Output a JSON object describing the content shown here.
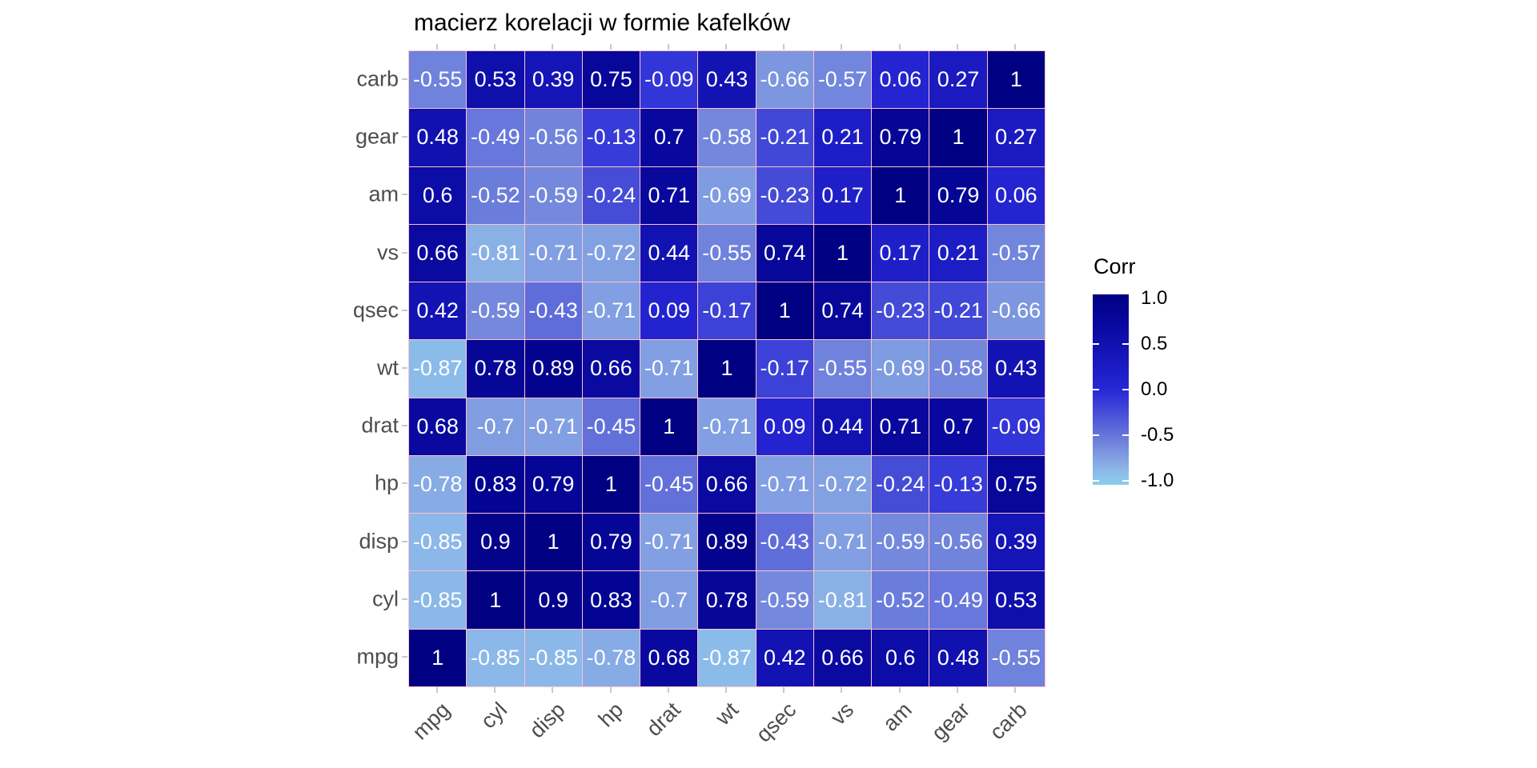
{
  "title": "macierz korelacji w formie kafelków",
  "legend": {
    "title": "Corr",
    "tick_labels": [
      "1.0",
      "0.5",
      "0.0",
      "-0.5",
      "-1.0"
    ],
    "tick_values": [
      1.0,
      0.5,
      0.0,
      -0.5,
      -1.0
    ],
    "dash_values": [
      0.5,
      0.0,
      -0.5,
      -1.0
    ]
  },
  "colors": {
    "tile_border": "#FFC2CE",
    "tile_text": "#FFFFFF",
    "axis_text": "#4D4D4D",
    "axis_tick": "#C9C9C9",
    "title_text": "#000000"
  },
  "chart_data": {
    "type": "heatmap",
    "title": "macierz korelacji w formie kafelków",
    "legend_title": "Corr",
    "legend_position": "right",
    "value_range": [
      -1,
      1
    ],
    "x_categories": [
      "mpg",
      "cyl",
      "disp",
      "hp",
      "drat",
      "wt",
      "qsec",
      "vs",
      "am",
      "gear",
      "carb"
    ],
    "y_categories_top_to_bottom": [
      "carb",
      "gear",
      "am",
      "vs",
      "qsec",
      "wt",
      "drat",
      "hp",
      "disp",
      "cyl",
      "mpg"
    ],
    "matrix_rows_top_to_bottom": [
      [
        -0.55,
        0.53,
        0.39,
        0.75,
        -0.09,
        0.43,
        -0.66,
        -0.57,
        0.06,
        0.27,
        1
      ],
      [
        0.48,
        -0.49,
        -0.56,
        -0.13,
        0.7,
        -0.58,
        -0.21,
        0.21,
        0.79,
        1,
        0.27
      ],
      [
        0.6,
        -0.52,
        -0.59,
        -0.24,
        0.71,
        -0.69,
        -0.23,
        0.17,
        1,
        0.79,
        0.06
      ],
      [
        0.66,
        -0.81,
        -0.71,
        -0.72,
        0.44,
        -0.55,
        0.74,
        1,
        0.17,
        0.21,
        -0.57
      ],
      [
        0.42,
        -0.59,
        -0.43,
        -0.71,
        0.09,
        -0.17,
        1,
        0.74,
        -0.23,
        -0.21,
        -0.66
      ],
      [
        -0.87,
        0.78,
        0.89,
        0.66,
        -0.71,
        1,
        -0.17,
        -0.55,
        -0.69,
        -0.58,
        0.43
      ],
      [
        0.68,
        -0.7,
        -0.71,
        -0.45,
        1,
        -0.71,
        0.09,
        0.44,
        0.71,
        0.7,
        -0.09
      ],
      [
        -0.78,
        0.83,
        0.79,
        1,
        -0.45,
        0.66,
        -0.71,
        -0.72,
        -0.24,
        -0.13,
        0.75
      ],
      [
        -0.85,
        0.9,
        1,
        0.79,
        -0.71,
        0.89,
        -0.43,
        -0.71,
        -0.59,
        -0.56,
        0.39
      ],
      [
        -0.85,
        1,
        0.9,
        0.83,
        -0.7,
        0.78,
        -0.59,
        -0.81,
        -0.52,
        -0.49,
        0.53
      ],
      [
        1,
        -0.85,
        -0.85,
        -0.78,
        0.68,
        -0.87,
        0.42,
        0.66,
        0.6,
        0.48,
        -0.55
      ]
    ],
    "colorscale_stops": [
      {
        "v": -1.0,
        "c": "#87CEEB"
      },
      {
        "v": -0.9,
        "c": "#8CC0EA"
      },
      {
        "v": -0.8,
        "c": "#89AFE6"
      },
      {
        "v": -0.7,
        "c": "#809DE1"
      },
      {
        "v": -0.6,
        "c": "#758BDD"
      },
      {
        "v": -0.5,
        "c": "#6979DB"
      },
      {
        "v": -0.4,
        "c": "#5B68D9"
      },
      {
        "v": -0.3,
        "c": "#4D57D8"
      },
      {
        "v": -0.2,
        "c": "#4046D7"
      },
      {
        "v": -0.1,
        "c": "#3336D7"
      },
      {
        "v": 0.0,
        "c": "#2727D6"
      },
      {
        "v": 0.1,
        "c": "#2222CE"
      },
      {
        "v": 0.2,
        "c": "#1D1DC6"
      },
      {
        "v": 0.3,
        "c": "#1818BE"
      },
      {
        "v": 0.4,
        "c": "#1414B6"
      },
      {
        "v": 0.5,
        "c": "#1010AE"
      },
      {
        "v": 0.6,
        "c": "#0C0CA6"
      },
      {
        "v": 0.7,
        "c": "#08089E"
      },
      {
        "v": 0.8,
        "c": "#050595"
      },
      {
        "v": 0.9,
        "c": "#03038C"
      },
      {
        "v": 1.0,
        "c": "#000082"
      }
    ]
  }
}
